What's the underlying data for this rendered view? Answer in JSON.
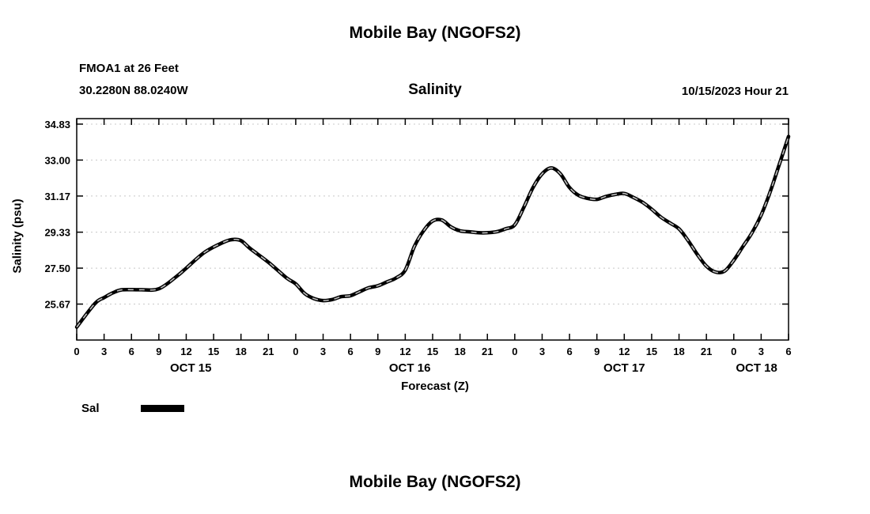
{
  "header": {
    "top_title": "Mobile Bay (NGOFS2)",
    "station_line1": "FMOA1 at 26 Feet",
    "station_line2": "30.2280N  88.0240W",
    "chart_title": "Salinity",
    "datetime": "10/15/2023 Hour 21"
  },
  "footer": {
    "bottom_title": "Mobile Bay (NGOFS2)"
  },
  "legend": {
    "label": "Sal"
  },
  "colors": {
    "line": "#000000",
    "line_dash_overlay": "#bfbfbf",
    "grid": "#c8c8c8",
    "axis": "#000000"
  },
  "chart_data": {
    "type": "line",
    "title": "Salinity",
    "xlabel": "Forecast (Z)",
    "ylabel": "Salinity (psu)",
    "x_unit_note": "hours since 10/15 00Z, tick labels shown as hour-of-day",
    "xlim": [
      0,
      78
    ],
    "ylim": [
      23.84,
      35.11
    ],
    "xtick_step": 3,
    "yticks": [
      25.67,
      27.5,
      29.33,
      31.17,
      33.0,
      34.83
    ],
    "ytick_labels": [
      "25.67",
      "27.50",
      "29.33",
      "31.17",
      "33.00",
      "34.83"
    ],
    "day_labels": [
      {
        "label": "OCT 15",
        "hour": 12.5
      },
      {
        "label": "OCT 16",
        "hour": 36.5
      },
      {
        "label": "OCT 17",
        "hour": 60.0
      },
      {
        "label": "OCT 18",
        "hour": 74.5
      }
    ],
    "grid": true,
    "legend_position": "bottom-left",
    "series": [
      {
        "name": "Sal",
        "x": [
          0,
          2,
          3,
          4,
          5,
          7,
          9,
          11,
          12,
          14,
          16,
          17,
          18,
          19,
          21,
          23,
          24,
          25,
          26,
          27,
          28,
          29,
          30,
          31,
          32,
          33,
          34,
          35,
          36,
          37,
          38,
          39,
          40,
          41,
          42,
          43,
          44,
          45,
          46,
          47,
          48,
          49,
          50,
          51,
          52,
          53,
          54,
          55,
          56,
          57,
          58,
          59,
          60,
          61,
          62,
          63,
          64,
          65,
          66,
          67,
          68,
          69,
          70,
          71,
          72,
          73,
          74,
          75,
          76,
          77,
          78
        ],
        "values": [
          24.5,
          25.7,
          26.0,
          26.25,
          26.4,
          26.4,
          26.45,
          27.1,
          27.5,
          28.3,
          28.8,
          28.95,
          28.9,
          28.5,
          27.8,
          27.0,
          26.7,
          26.2,
          25.95,
          25.85,
          25.9,
          26.05,
          26.1,
          26.3,
          26.5,
          26.6,
          26.8,
          27.0,
          27.4,
          28.6,
          29.4,
          29.9,
          29.95,
          29.6,
          29.4,
          29.35,
          29.3,
          29.3,
          29.35,
          29.5,
          29.7,
          30.6,
          31.6,
          32.3,
          32.6,
          32.3,
          31.6,
          31.2,
          31.05,
          31.0,
          31.15,
          31.25,
          31.3,
          31.1,
          30.85,
          30.5,
          30.1,
          29.8,
          29.5,
          28.9,
          28.2,
          27.6,
          27.3,
          27.35,
          27.9,
          28.6,
          29.3,
          30.2,
          31.4,
          32.8,
          34.2
        ]
      }
    ]
  }
}
